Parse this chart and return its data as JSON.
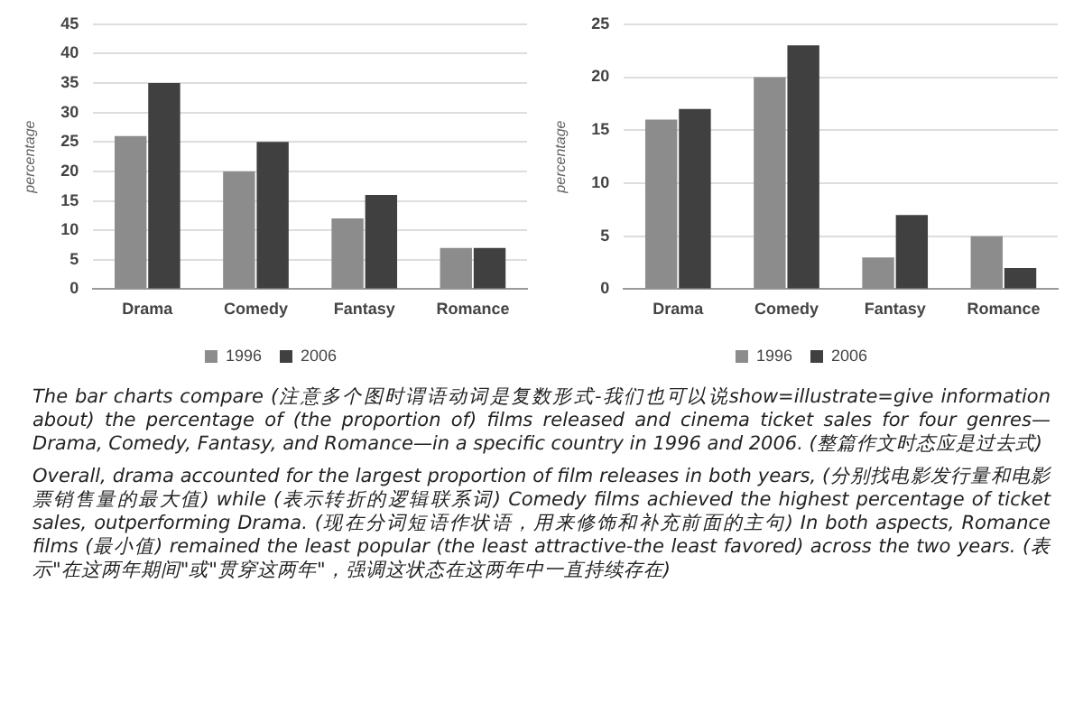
{
  "chart_data": [
    {
      "type": "bar",
      "ylabel": "percentage",
      "categories": [
        "Drama",
        "Comedy",
        "Fantasy",
        "Romance"
      ],
      "series": [
        {
          "name": "1996",
          "color": "#8c8c8c",
          "values": [
            26,
            20,
            12,
            7
          ]
        },
        {
          "name": "2006",
          "color": "#404040",
          "values": [
            35,
            25,
            16,
            7
          ]
        }
      ],
      "ylim": [
        0,
        45
      ],
      "yticks": [
        0,
        5,
        10,
        15,
        20,
        25,
        30,
        35,
        40,
        45
      ],
      "grid": "y",
      "legend": "bottom",
      "annotations": [
        "The bar charts compare (注意多个图时谓语动词是复数形式-我们也可以说show=illustrate=give information about) the percentage of (the proportion of) films released and cinema ticket sales for four genres—Drama, Comedy, Fantasy, and Romance—in a specific country in 1996 and 2006. (整篇作文时态应是过去式)",
        "Overall, drama accounted for the largest proportion of film releases in both years, (分别找电影发行量和电影票销售量的最大值) while (表示转折的逻辑联系词) Comedy films achieved the highest percentage of ticket sales, outperforming Drama. (现在分词短语作状语，用来修饰和补充前面的主句) In both aspects, Romance films (最小值) remained the least popular (the least attractive-the least favored) across the two years. (表示\"在这两年期间\"或\"贯穿这两年\"，强调这状态在这两年中一直持续存在)"
      ]
    },
    {
      "type": "bar",
      "ylabel": "percentage",
      "categories": [
        "Drama",
        "Comedy",
        "Fantasy",
        "Romance"
      ],
      "series": [
        {
          "name": "1996",
          "color": "#8c8c8c",
          "values": [
            16,
            20,
            3,
            5
          ]
        },
        {
          "name": "2006",
          "color": "#404040",
          "values": [
            17,
            23,
            7,
            2
          ]
        }
      ],
      "ylim": [
        0,
        25
      ],
      "yticks": [
        0,
        5,
        10,
        15,
        20,
        25
      ],
      "grid": "y",
      "legend": "bottom"
    }
  ]
}
